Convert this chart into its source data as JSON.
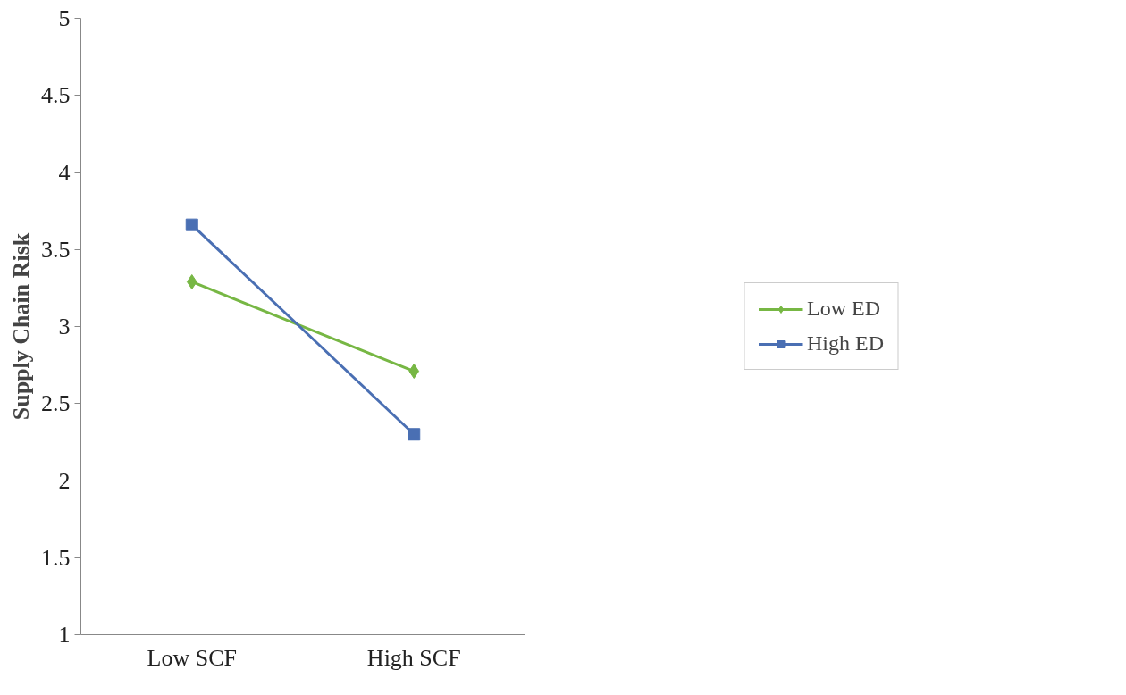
{
  "chart_data": {
    "type": "line",
    "ylabel": "Supply Chain Risk",
    "categories": [
      "Low SCF",
      "High SCF"
    ],
    "series": [
      {
        "name": "Low ED",
        "color": "#77b744",
        "marker": "diamond",
        "values": [
          3.29,
          2.71
        ]
      },
      {
        "name": "High ED",
        "color": "#4a6fb3",
        "marker": "square",
        "values": [
          3.66,
          2.3
        ]
      }
    ],
    "ylim": [
      1,
      5
    ],
    "yticks": [
      1,
      1.5,
      2,
      2.5,
      3,
      3.5,
      4,
      4.5,
      5
    ],
    "grid": false,
    "legend": "right"
  }
}
